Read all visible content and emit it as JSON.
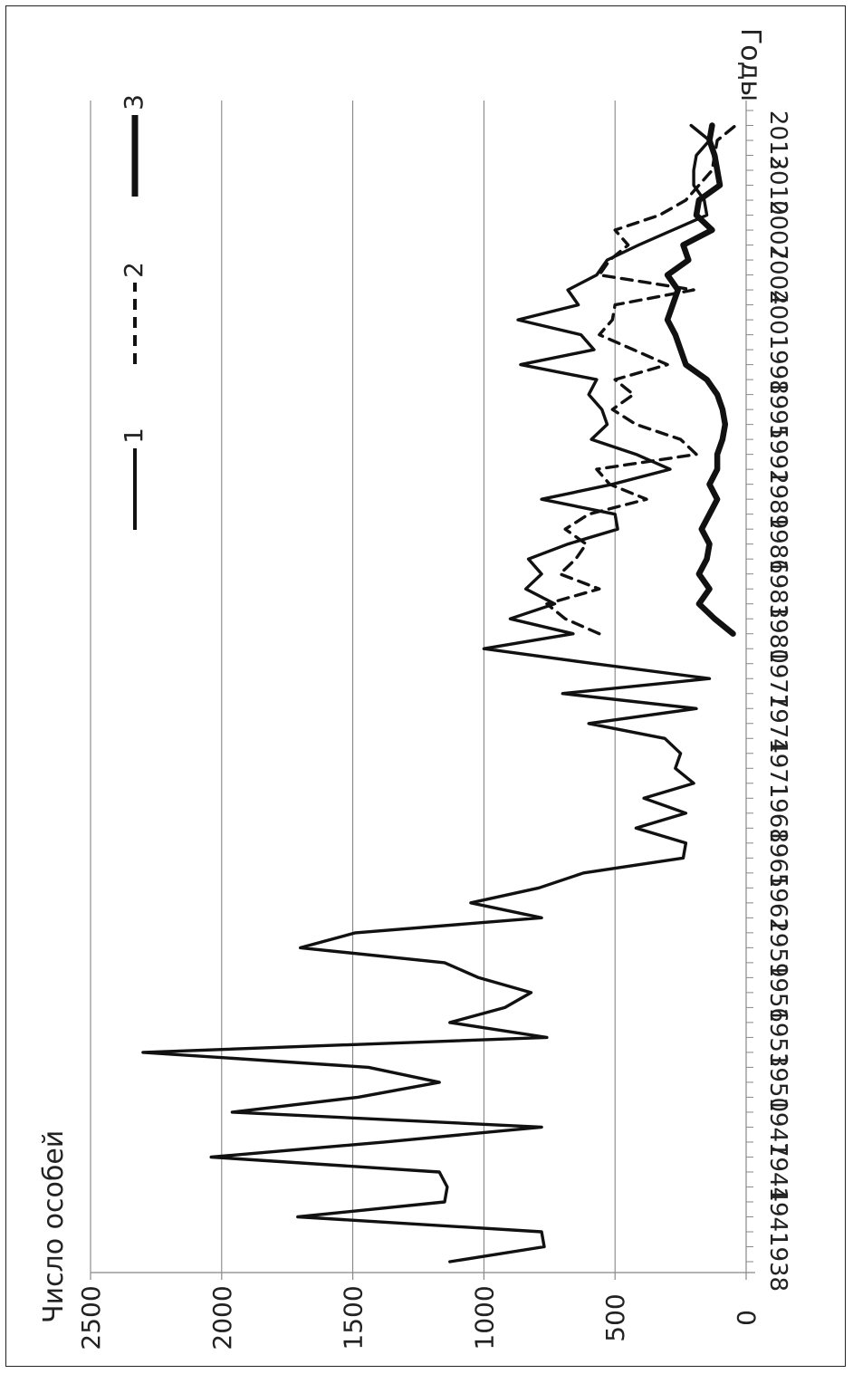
{
  "chart_data": {
    "type": "line",
    "ylabel": "Число особей",
    "xlabel": "Годы",
    "ylim": [
      0,
      2500
    ],
    "yticks": [
      0,
      500,
      1000,
      1500,
      2000,
      2500
    ],
    "xlim": [
      1937.5,
      2015.5
    ],
    "xticks": [
      1938,
      1941,
      1944,
      1947,
      1950,
      1953,
      1956,
      1959,
      1962,
      1965,
      1968,
      1971,
      1974,
      1977,
      1980,
      1983,
      1986,
      1989,
      1992,
      1995,
      1998,
      2001,
      2004,
      2007,
      2010,
      2013
    ],
    "orientation": "rotated-90-clockwise",
    "grid": "horizontal-value-lines",
    "legend": "top-right",
    "series": [
      {
        "name": "1",
        "style": "solid-thin",
        "x": [
          1938,
          1939,
          1940,
          1941,
          1942,
          1943,
          1944,
          1945,
          1946,
          1947,
          1948,
          1949,
          1950,
          1951,
          1952,
          1953,
          1954,
          1955,
          1956,
          1957,
          1958,
          1959,
          1960,
          1961,
          1962,
          1963,
          1964,
          1965,
          1966,
          1967,
          1968,
          1969,
          1970,
          1971,
          1972,
          1973,
          1974,
          1975,
          1976,
          1977,
          1978,
          1979,
          1980,
          1981,
          1982,
          1983,
          1984,
          1985,
          1986,
          1987,
          1988,
          1989,
          1990,
          1991,
          1992,
          1993,
          1994,
          1995,
          1996,
          1997,
          1998,
          1999,
          2000,
          2001,
          2002,
          2003,
          2004,
          2005,
          2006,
          2007,
          2008,
          2009,
          2010,
          2011,
          2012,
          2013,
          2014
        ],
        "values": [
          1130,
          770,
          780,
          1710,
          1150,
          1140,
          1170,
          2040,
          1380,
          780,
          1960,
          1480,
          1170,
          1440,
          2300,
          760,
          1130,
          920,
          820,
          1020,
          1150,
          1700,
          1490,
          780,
          1050,
          790,
          620,
          240,
          230,
          420,
          230,
          390,
          200,
          270,
          250,
          310,
          600,
          190,
          700,
          140,
          580,
          1000,
          660,
          900,
          730,
          840,
          780,
          830,
          680,
          490,
          500,
          780,
          510,
          290,
          420,
          590,
          530,
          550,
          600,
          570,
          860,
          580,
          630,
          870,
          640,
          680,
          570,
          530,
          410,
          280,
          150,
          160,
          200,
          200,
          190,
          140,
          210
        ]
      },
      {
        "name": "2",
        "style": "dashed",
        "x": [
          1980,
          1981,
          1982,
          1983,
          1984,
          1985,
          1986,
          1987,
          1988,
          1989,
          1990,
          1991,
          1992,
          1993,
          1994,
          1995,
          1996,
          1997,
          1998,
          1999,
          2000,
          2001,
          2002,
          2003,
          2004,
          2005,
          2006,
          2007,
          2008,
          2009,
          2010,
          2011,
          2012,
          2013,
          2014
        ],
        "values": [
          560,
          690,
          760,
          560,
          710,
          650,
          610,
          690,
          600,
          380,
          520,
          570,
          190,
          250,
          420,
          510,
          430,
          500,
          300,
          430,
          560,
          510,
          500,
          200,
          560,
          520,
          450,
          500,
          330,
          230,
          180,
          130,
          120,
          110,
          40
        ]
      },
      {
        "name": "3",
        "style": "solid-thick",
        "x": [
          1980,
          1981,
          1982,
          1983,
          1984,
          1985,
          1986,
          1987,
          1988,
          1989,
          1990,
          1991,
          1992,
          1993,
          1994,
          1995,
          1996,
          1997,
          1998,
          1999,
          2000,
          2001,
          2002,
          2003,
          2004,
          2005,
          2006,
          2007,
          2008,
          2009,
          2010,
          2011,
          2012,
          2013,
          2014
        ],
        "values": [
          50,
          120,
          180,
          140,
          180,
          150,
          140,
          170,
          140,
          110,
          140,
          110,
          110,
          90,
          80,
          90,
          110,
          150,
          230,
          250,
          270,
          300,
          280,
          260,
          300,
          220,
          240,
          130,
          190,
          180,
          100,
          110,
          120,
          140,
          130
        ]
      }
    ]
  }
}
